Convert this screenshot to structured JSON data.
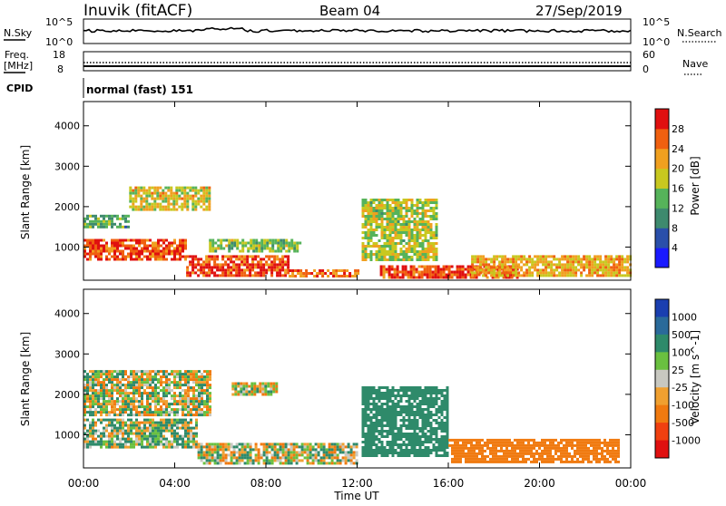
{
  "header": {
    "title": "Inuvik (fitACF)",
    "beam": "Beam 04",
    "date": "27/Sep/2019"
  },
  "noise_panel": {
    "left_label": "N.Sky",
    "left_top": "10^5",
    "left_bottom": "10^0",
    "right_top": "10^5",
    "right_bottom": "10^0",
    "right_label": "N.Search"
  },
  "freq_panel": {
    "label_line1": "Freq.",
    "label_line2": "[MHz]",
    "left_top": "18",
    "left_bottom": "8",
    "right_top": "60",
    "right_bottom": "0",
    "right_label": "Nave"
  },
  "cpid": {
    "label": "CPID",
    "value": "normal (fast) 151"
  },
  "axes": {
    "ylabel": "Slant Range [km]",
    "xlabel": "Time UT",
    "y_ticks": [
      "1000",
      "2000",
      "3000",
      "4000"
    ],
    "x_ticks": [
      "00:00",
      "04:00",
      "08:00",
      "12:00",
      "16:00",
      "20:00",
      "00:00"
    ]
  },
  "power_scale": {
    "label": "Power [dB]",
    "ticks": [
      "4",
      "8",
      "12",
      "16",
      "20",
      "24",
      "28"
    ],
    "colors": [
      "#1a1aff",
      "#2a4faa",
      "#3e8a6e",
      "#56b35a",
      "#c8c820",
      "#f0a020",
      "#f06010",
      "#e01010"
    ]
  },
  "velocity_scale": {
    "label": "Velocity [m s^-1]",
    "ticks": [
      "1000",
      "500",
      "100",
      "25",
      "-25",
      "-100",
      "-500",
      "-1000"
    ],
    "colors": [
      "#1a3fb0",
      "#2a6a9a",
      "#2e8a6a",
      "#6ac040",
      "#c8c8c0",
      "#f0a030",
      "#f07a10",
      "#f04010",
      "#e01010"
    ]
  },
  "chart_data": {
    "type": "heatmap",
    "title": "Inuvik (fitACF)  Beam 04  27/Sep/2019",
    "xlabel": "Time UT",
    "ylabel": "Slant Range [km]",
    "xlim_hours": [
      0,
      24
    ],
    "ylim_km": [
      180,
      4600
    ],
    "panels": [
      {
        "name": "Power [dB]",
        "scale": [
          0,
          30
        ],
        "regions": [
          {
            "t": [
              0.0,
              4.5
            ],
            "r": [
              700,
              1200
            ],
            "value": 26
          },
          {
            "t": [
              4.5,
              9.0
            ],
            "r": [
              300,
              800
            ],
            "value": 26
          },
          {
            "t": [
              9.0,
              12.0
            ],
            "r": [
              250,
              450
            ],
            "value": 24
          },
          {
            "t": [
              0.0,
              2.0
            ],
            "r": [
              1500,
              1800
            ],
            "value": 12
          },
          {
            "t": [
              2.0,
              5.5
            ],
            "r": [
              1900,
              2500
            ],
            "value": 18
          },
          {
            "t": [
              5.5,
              9.5
            ],
            "r": [
              900,
              1200
            ],
            "value": 14
          },
          {
            "t": [
              12.2,
              15.5
            ],
            "r": [
              700,
              2200
            ],
            "value": 16
          },
          {
            "t": [
              13.0,
              19.0
            ],
            "r": [
              250,
              550
            ],
            "value": 26
          },
          {
            "t": [
              17.0,
              24.0
            ],
            "r": [
              300,
              800
            ],
            "value": 20
          }
        ]
      },
      {
        "name": "Velocity [m s^-1]",
        "scale": [
          -1000,
          1000
        ],
        "regions": [
          {
            "t": [
              0.0,
              5.0
            ],
            "r": [
              700,
              1400
            ],
            "value": 80
          },
          {
            "t": [
              5.0,
              12.0
            ],
            "r": [
              300,
              800
            ],
            "value": 20
          },
          {
            "t": [
              0.0,
              5.5
            ],
            "r": [
              1500,
              2600
            ],
            "value": 0
          },
          {
            "t": [
              6.5,
              8.5
            ],
            "r": [
              2000,
              2300
            ],
            "value": 0
          },
          {
            "t": [
              12.2,
              16.0
            ],
            "r": [
              500,
              2200
            ],
            "value": 300
          },
          {
            "t": [
              16.0,
              23.5
            ],
            "r": [
              300,
              900
            ],
            "value": -300
          }
        ]
      }
    ]
  }
}
